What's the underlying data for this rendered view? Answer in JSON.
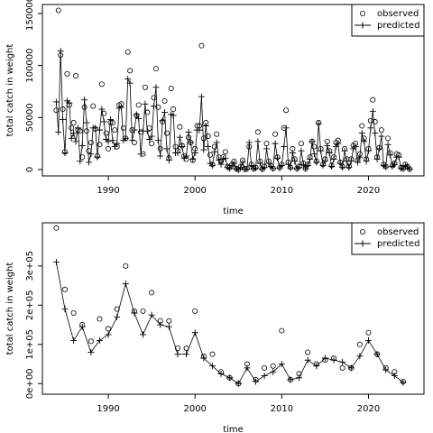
{
  "chart_data": [
    {
      "type": "line",
      "x_label": "time",
      "y_label": "total catch in weight",
      "legend": "topright",
      "grid": false,
      "xlim": [
        1982.4,
        2026.4
      ],
      "xticks": [
        1990,
        2000,
        2010,
        2020
      ],
      "ylim": [
        -6100,
        158600
      ],
      "yticks": [
        0,
        50000,
        100000,
        150000
      ],
      "x": [
        1984,
        1984.25,
        1984.5,
        1984.75,
        1985,
        1985.25,
        1985.5,
        1985.75,
        1986,
        1986.25,
        1986.5,
        1986.75,
        1987,
        1987.25,
        1987.5,
        1987.75,
        1988,
        1988.25,
        1988.5,
        1988.75,
        1989,
        1989.25,
        1989.5,
        1989.75,
        1990,
        1990.25,
        1990.5,
        1990.75,
        1991,
        1991.25,
        1991.5,
        1991.75,
        1992,
        1992.25,
        1992.5,
        1992.75,
        1993,
        1993.25,
        1993.5,
        1993.75,
        1994,
        1994.25,
        1994.5,
        1994.75,
        1995,
        1995.25,
        1995.5,
        1995.75,
        1996,
        1996.25,
        1996.5,
        1996.75,
        1997,
        1997.25,
        1997.5,
        1997.75,
        1998,
        1998.25,
        1998.5,
        1998.75,
        1999,
        1999.25,
        1999.5,
        1999.75,
        2000,
        2000.25,
        2000.5,
        2000.75,
        2001,
        2001.25,
        2001.5,
        2001.75,
        2002,
        2002.25,
        2002.5,
        2002.75,
        2003,
        2003.25,
        2003.5,
        2003.75,
        2004,
        2004.25,
        2004.5,
        2004.75,
        2005,
        2005.25,
        2005.5,
        2005.75,
        2006,
        2006.25,
        2006.5,
        2006.75,
        2007,
        2007.25,
        2007.5,
        2007.75,
        2008,
        2008.25,
        2008.5,
        2008.75,
        2009,
        2009.25,
        2009.5,
        2009.75,
        2010,
        2010.25,
        2010.5,
        2010.75,
        2011,
        2011.25,
        2011.5,
        2011.75,
        2012,
        2012.25,
        2012.5,
        2012.75,
        2013,
        2013.25,
        2013.5,
        2013.75,
        2014,
        2014.25,
        2014.5,
        2014.75,
        2015,
        2015.25,
        2015.5,
        2015.75,
        2016,
        2016.25,
        2016.5,
        2016.75,
        2017,
        2017.25,
        2017.5,
        2017.75,
        2018,
        2018.25,
        2018.5,
        2018.75,
        2019,
        2019.25,
        2019.5,
        2019.75,
        2020,
        2020.25,
        2020.5,
        2020.75,
        2021,
        2021.25,
        2021.5,
        2021.75,
        2022,
        2022.25,
        2022.5,
        2022.75,
        2023,
        2023.25,
        2023.5,
        2023.75,
        2024,
        2024.25,
        2024.5,
        2024.75
      ],
      "series": [
        {
          "name": "observed",
          "color": "#000000",
          "marker": "circle",
          "line": false,
          "values": [
            57000,
            153000,
            110000,
            58000,
            17000,
            92000,
            62000,
            40000,
            45000,
            90000,
            38000,
            37000,
            12000,
            60000,
            37000,
            18000,
            26000,
            61000,
            39000,
            13000,
            24000,
            82000,
            54000,
            35000,
            20000,
            45000,
            45000,
            38000,
            22000,
            62000,
            63000,
            40000,
            30000,
            113000,
            95000,
            38000,
            26000,
            52000,
            62000,
            36000,
            15000,
            79000,
            55000,
            40000,
            25000,
            69000,
            97000,
            60000,
            20000,
            46000,
            66000,
            35000,
            11000,
            78000,
            58000,
            22000,
            18000,
            41000,
            23000,
            13000,
            10000,
            31000,
            26000,
            9000,
            20000,
            42000,
            42000,
            119000,
            30000,
            45000,
            32000,
            14000,
            5000,
            22000,
            34000,
            12000,
            8000,
            12000,
            17000,
            3000,
            2000,
            5000,
            8000,
            1000,
            0,
            3000,
            9000,
            500,
            1000,
            22000,
            5000,
            1000,
            2000,
            36000,
            8000,
            500,
            3000,
            25000,
            8000,
            4000,
            1000,
            34000,
            12000,
            2000,
            5000,
            40000,
            57000,
            7000,
            2000,
            20000,
            10000,
            1000,
            3000,
            25000,
            6000,
            1000,
            5000,
            12000,
            27000,
            22000,
            8000,
            45000,
            20000,
            5000,
            10000,
            27000,
            18000,
            4000,
            12000,
            26000,
            28000,
            7000,
            3000,
            20000,
            10000,
            3000,
            10000,
            23000,
            25000,
            9000,
            15000,
            42000,
            30000,
            10000,
            20000,
            47000,
            67000,
            46000,
            12000,
            21000,
            38000,
            5000,
            3000,
            30000,
            16000,
            4000,
            6000,
            15000,
            14000,
            2000,
            1000,
            5000,
            3000,
            500
          ]
        },
        {
          "name": "predicted",
          "color": "#000000",
          "marker": "plus",
          "line": true,
          "values": [
            65000,
            36000,
            114000,
            48000,
            16000,
            66000,
            64000,
            30000,
            35000,
            27000,
            40000,
            8000,
            23000,
            67000,
            45000,
            7000,
            15000,
            40000,
            40000,
            12000,
            38000,
            58000,
            46000,
            29000,
            27000,
            48000,
            28000,
            22000,
            25000,
            59000,
            60000,
            28000,
            30000,
            87000,
            83000,
            28000,
            38000,
            53000,
            49000,
            15000,
            37000,
            63000,
            37000,
            29000,
            32000,
            61000,
            79000,
            28000,
            13000,
            47000,
            55000,
            20000,
            9000,
            53000,
            52000,
            16000,
            16000,
            31000,
            22000,
            11000,
            13000,
            36000,
            26000,
            10000,
            16000,
            38000,
            38000,
            70000,
            19000,
            42000,
            22000,
            6000,
            4000,
            17000,
            26000,
            9000,
            5000,
            10000,
            11000,
            2000,
            1000,
            4000,
            6000,
            800,
            0,
            2000,
            7000,
            400,
            700,
            26000,
            4000,
            800,
            1500,
            27000,
            6000,
            400,
            2000,
            20000,
            6000,
            3000,
            1000,
            25000,
            11000,
            1500,
            4000,
            22000,
            40000,
            5000,
            1500,
            16000,
            8000,
            800,
            2000,
            18000,
            5000,
            800,
            4000,
            10000,
            27000,
            15000,
            7000,
            44000,
            18000,
            4000,
            8000,
            23000,
            16000,
            3000,
            10000,
            22000,
            25000,
            6000,
            2000,
            18000,
            8000,
            2000,
            8000,
            20000,
            22000,
            7000,
            12000,
            35000,
            27000,
            8000,
            18000,
            40000,
            56000,
            35000,
            10000,
            20000,
            32000,
            4000,
            2500,
            24000,
            14000,
            3000,
            5000,
            12000,
            12000,
            1500,
            800,
            4000,
            2500,
            400
          ]
        }
      ]
    },
    {
      "type": "line",
      "x_label": "time",
      "y_label": "total catch in weight",
      "legend": "topright",
      "grid": false,
      "xlim": [
        1982.4,
        2026.4
      ],
      "xticks": [
        1990,
        2000,
        2010,
        2020
      ],
      "ylim": [
        -27000,
        410000
      ],
      "yticks": [
        {
          "value": 0,
          "label": "0e+00"
        },
        {
          "value": 100000,
          "label": "1e+05"
        },
        {
          "value": 200000,
          "label": "2e+05"
        },
        {
          "value": 300000,
          "label": "3e+05"
        }
      ],
      "x": [
        1984,
        1985,
        1986,
        1987,
        1988,
        1989,
        1990,
        1991,
        1992,
        1993,
        1994,
        1995,
        1996,
        1997,
        1998,
        1999,
        2000,
        2001,
        2002,
        2003,
        2004,
        2005,
        2006,
        2007,
        2008,
        2009,
        2010,
        2011,
        2012,
        2013,
        2014,
        2015,
        2016,
        2017,
        2018,
        2019,
        2020,
        2021,
        2022,
        2023,
        2024
      ],
      "series": [
        {
          "name": "observed",
          "color": "#000000",
          "marker": "circle",
          "line": false,
          "values": [
            397000,
            240000,
            180000,
            150000,
            108000,
            165000,
            140000,
            190000,
            300000,
            185000,
            185000,
            232000,
            160000,
            160000,
            90000,
            90000,
            185000,
            70000,
            75000,
            30000,
            15000,
            0,
            50000,
            10000,
            40000,
            45000,
            135000,
            10000,
            25000,
            80000,
            50000,
            60000,
            65000,
            40000,
            40000,
            100000,
            130000,
            75000,
            40000,
            30000,
            5000
          ]
        },
        {
          "name": "predicted",
          "color": "#000000",
          "marker": "plus",
          "line": true,
          "values": [
            310000,
            190000,
            110000,
            145000,
            80000,
            110000,
            125000,
            170000,
            255000,
            180000,
            125000,
            175000,
            150000,
            145000,
            75000,
            75000,
            130000,
            65000,
            45000,
            25000,
            15000,
            0,
            40000,
            5000,
            20000,
            30000,
            50000,
            10000,
            15000,
            60000,
            45000,
            65000,
            60000,
            55000,
            40000,
            70000,
            110000,
            75000,
            35000,
            20000,
            3000
          ]
        }
      ]
    }
  ]
}
